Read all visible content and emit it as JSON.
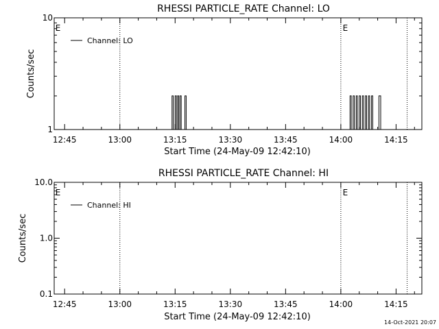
{
  "footer": {
    "timestamp": "14-Oct-2021 20:07"
  },
  "chart_data": [
    {
      "type": "line",
      "title": "RHESSI PARTICLE_RATE Channel: LO",
      "xlabel": "Start Time (24-May-09 12:42:10)",
      "ylabel": "Counts/sec",
      "y_scale": "log",
      "xlim": [
        "12:42:10",
        "14:22:00"
      ],
      "ylim": [
        1,
        10
      ],
      "x_ticks": [
        "12:45",
        "13:00",
        "13:15",
        "13:30",
        "13:45",
        "14:00",
        "14:15"
      ],
      "y_ticks": [
        "1",
        "10"
      ],
      "grid": false,
      "legend": {
        "placement": "top-left",
        "entries": [
          "Channel: LO"
        ]
      },
      "annotations": [
        {
          "text": "E",
          "x": "12:42:30"
        },
        {
          "text": "E",
          "x": "14:00:30"
        }
      ],
      "vertical_lines": [
        "13:00",
        "14:00",
        "14:18"
      ],
      "series": [
        {
          "name": "Channel: LO",
          "points": [
            [
              "13:14:10",
              1
            ],
            [
              "13:14:10",
              2
            ],
            [
              "13:14:30",
              2
            ],
            [
              "13:14:30",
              1
            ],
            [
              "13:15:00",
              1
            ],
            [
              "13:15:00",
              2
            ],
            [
              "13:15:20",
              2
            ],
            [
              "13:15:20",
              1
            ],
            [
              "13:15:40",
              1
            ],
            [
              "13:15:40",
              2
            ],
            [
              "13:16:00",
              2
            ],
            [
              "13:16:00",
              1
            ],
            [
              "13:16:20",
              1
            ],
            [
              "13:16:20",
              2
            ],
            [
              "13:16:40",
              2
            ],
            [
              "13:16:40",
              1
            ],
            [
              "13:17:40",
              1
            ],
            [
              "13:17:40",
              2
            ],
            [
              "13:18:00",
              2
            ],
            [
              "13:18:00",
              1
            ],
            [
              "14:02:30",
              1
            ],
            [
              "14:02:30",
              2
            ],
            [
              "14:02:50",
              2
            ],
            [
              "14:02:50",
              1
            ],
            [
              "14:03:20",
              1
            ],
            [
              "14:03:20",
              2
            ],
            [
              "14:03:40",
              2
            ],
            [
              "14:03:40",
              1
            ],
            [
              "14:04:10",
              1
            ],
            [
              "14:04:10",
              2
            ],
            [
              "14:04:30",
              2
            ],
            [
              "14:04:30",
              1
            ],
            [
              "14:05:00",
              1
            ],
            [
              "14:05:00",
              2
            ],
            [
              "14:05:20",
              2
            ],
            [
              "14:05:20",
              1
            ],
            [
              "14:05:50",
              1
            ],
            [
              "14:05:50",
              2
            ],
            [
              "14:06:10",
              2
            ],
            [
              "14:06:10",
              1
            ],
            [
              "14:06:40",
              1
            ],
            [
              "14:06:40",
              2
            ],
            [
              "14:07:00",
              2
            ],
            [
              "14:07:00",
              1
            ],
            [
              "14:07:30",
              1
            ],
            [
              "14:07:30",
              2
            ],
            [
              "14:07:50",
              2
            ],
            [
              "14:07:50",
              1
            ],
            [
              "14:08:20",
              1
            ],
            [
              "14:08:20",
              2
            ],
            [
              "14:08:40",
              2
            ],
            [
              "14:08:40",
              1
            ],
            [
              "14:10:20",
              1
            ],
            [
              "14:10:20",
              2
            ],
            [
              "14:10:50",
              2
            ],
            [
              "14:10:50",
              1
            ]
          ]
        }
      ]
    },
    {
      "type": "line",
      "title": "RHESSI PARTICLE_RATE Channel: HI",
      "xlabel": "Start Time (24-May-09 12:42:10)",
      "ylabel": "Counts/sec",
      "y_scale": "log",
      "xlim": [
        "12:42:10",
        "14:22:00"
      ],
      "ylim": [
        0.1,
        10
      ],
      "x_ticks": [
        "12:45",
        "13:00",
        "13:15",
        "13:30",
        "13:45",
        "14:00",
        "14:15"
      ],
      "y_ticks": [
        "0.1",
        "1.0",
        "10.0"
      ],
      "grid": false,
      "legend": {
        "placement": "top-left",
        "entries": [
          "Channel: HI"
        ]
      },
      "annotations": [
        {
          "text": "E",
          "x": "12:42:30"
        },
        {
          "text": "E",
          "x": "14:00:30"
        }
      ],
      "vertical_lines": [
        "13:00",
        "14:00",
        "14:18"
      ],
      "series": [
        {
          "name": "Channel: HI",
          "points": []
        }
      ]
    }
  ]
}
